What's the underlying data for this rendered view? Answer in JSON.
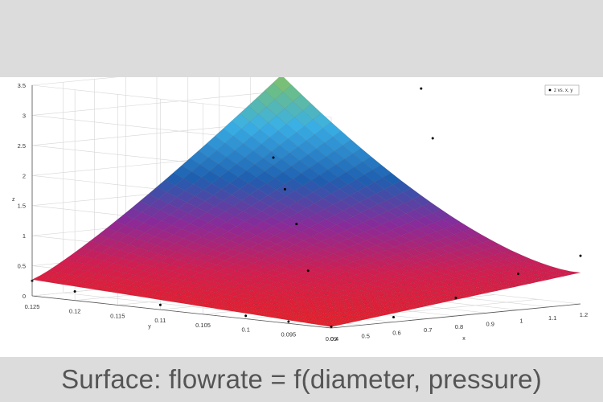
{
  "caption": "Surface: flowrate = f(diameter, pressure)",
  "chart_data": {
    "type": "surface3d",
    "xlabel": "x",
    "ylabel": "y",
    "zlabel": "z",
    "xlim": [
      0.4,
      1.2
    ],
    "ylim": [
      0.09,
      0.125
    ],
    "zlim": [
      0,
      3.5
    ],
    "x_ticks": [
      "0.4",
      "0.5",
      "0.6",
      "0.7",
      "0.8",
      "0.9",
      "1",
      "1.1",
      "1.2"
    ],
    "y_ticks": [
      "0.125",
      "0.12",
      "0.115",
      "0.11",
      "0.105",
      "0.1",
      "0.095",
      "0.09"
    ],
    "z_ticks": [
      "0",
      "0.5",
      "1",
      "1.5",
      "2",
      "2.5",
      "3",
      "3.5"
    ],
    "legend": "z vs. x, y",
    "grid": true,
    "colors": {
      "low": "#e8202a",
      "mid_low": "#8a2a9a",
      "mid": "#1e5fb0",
      "mid_high": "#3ab0e6",
      "high": "#b8c83a"
    },
    "points": [
      {
        "x": 0.4,
        "y": 0.125,
        "z": 0.25
      },
      {
        "x": 0.4,
        "y": 0.12,
        "z": 0.15
      },
      {
        "x": 0.4,
        "y": 0.11,
        "z": 0.08
      },
      {
        "x": 0.4,
        "y": 0.1,
        "z": 0.05
      },
      {
        "x": 0.4,
        "y": 0.095,
        "z": 0.03
      },
      {
        "x": 0.4,
        "y": 0.09,
        "z": 0.02
      },
      {
        "x": 0.6,
        "y": 0.09,
        "z": 0.08
      },
      {
        "x": 0.8,
        "y": 0.09,
        "z": 0.3
      },
      {
        "x": 1.0,
        "y": 0.09,
        "z": 0.6
      },
      {
        "x": 1.2,
        "y": 0.09,
        "z": 0.8
      },
      {
        "x": 0.6,
        "y": 0.1,
        "z": 0.7
      },
      {
        "x": 0.7,
        "y": 0.105,
        "z": 1.35
      },
      {
        "x": 0.8,
        "y": 0.11,
        "z": 1.8
      },
      {
        "x": 0.9,
        "y": 0.115,
        "z": 2.2
      },
      {
        "x": 1.0,
        "y": 0.1,
        "z": 2.7
      },
      {
        "x": 1.1,
        "y": 0.105,
        "z": 3.4
      }
    ]
  }
}
